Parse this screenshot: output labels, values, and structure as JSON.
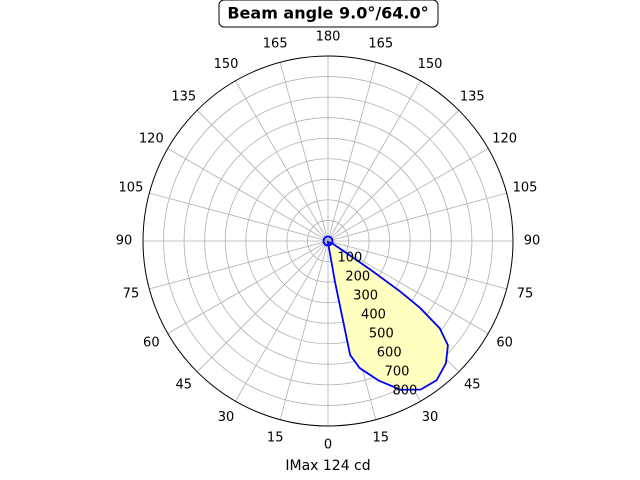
{
  "chart_data": {
    "type": "polar",
    "title": "Beam angle 9.0°/64.0°",
    "xlabel": "IMax 124 cd",
    "theta_zero": "S",
    "theta_direction": "counterclockwise",
    "xticks": [
      0,
      15,
      30,
      45,
      60,
      75,
      90,
      105,
      120,
      135,
      150,
      165,
      180,
      {
        "value": 195,
        "label": "165"
      },
      {
        "value": 210,
        "label": "150"
      },
      {
        "value": 225,
        "label": "135"
      },
      {
        "value": 240,
        "label": "120"
      },
      {
        "value": 255,
        "label": "105"
      },
      {
        "value": 270,
        "label": "90"
      },
      {
        "value": 285,
        "label": "75"
      },
      {
        "value": 300,
        "label": "60"
      },
      {
        "value": 315,
        "label": "45"
      },
      {
        "value": 330,
        "label": "30"
      },
      {
        "value": 345,
        "label": "15"
      }
    ],
    "ylim": [
      0,
      900
    ],
    "yticks": [
      100,
      200,
      300,
      400,
      500,
      600,
      700,
      800
    ],
    "grid": true,
    "series": [
      {
        "color": "#0000ff",
        "fill": "#ffffc0",
        "x": [
          0,
          8,
          9.7,
          10.8,
          11,
          14,
          20,
          26,
          32,
          38,
          44,
          49,
          52,
          54,
          55,
          56,
          60
        ],
        "values": [
          5,
          30,
          200,
          441,
          565,
          637,
          723,
          805,
          852,
          859,
          826,
          773,
          690,
          554,
          430,
          248,
          30
        ]
      }
    ]
  }
}
